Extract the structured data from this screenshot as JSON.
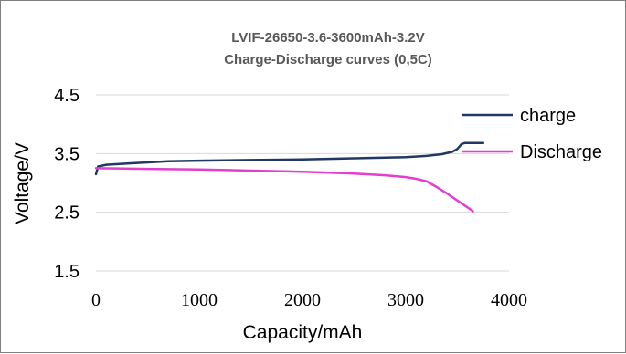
{
  "chart_data": {
    "type": "line",
    "title": "LVIF-26650-3.6-3600mAh-3.2V",
    "subtitle": "Charge-Discharge curves (0,5C)",
    "xlabel": "Capacity/mAh",
    "ylabel": "Voltage/V",
    "xlim": [
      0,
      4000
    ],
    "ylim": [
      1.5,
      4.5
    ],
    "xticks": [
      "0",
      "1000",
      "2000",
      "3000",
      "4000"
    ],
    "yticks": [
      "4.5",
      "3.5",
      "2.5",
      "1.5"
    ],
    "grid": "horizontal",
    "legend_position": "right",
    "series": [
      {
        "name": "charge",
        "color": "#1f3864",
        "x": [
          0,
          20,
          100,
          300,
          500,
          700,
          1000,
          1500,
          2000,
          2500,
          3000,
          3200,
          3350,
          3450,
          3500,
          3540,
          3570,
          3600,
          3700,
          3750
        ],
        "y": [
          3.15,
          3.28,
          3.31,
          3.33,
          3.35,
          3.37,
          3.38,
          3.39,
          3.4,
          3.42,
          3.44,
          3.46,
          3.49,
          3.53,
          3.58,
          3.66,
          3.68,
          3.68,
          3.68,
          3.68
        ]
      },
      {
        "name": "Discharge",
        "color": "#e23ed0",
        "x": [
          0,
          500,
          1000,
          1500,
          2000,
          2500,
          2800,
          3000,
          3100,
          3200,
          3300,
          3400,
          3500,
          3600,
          3650
        ],
        "y": [
          3.25,
          3.24,
          3.23,
          3.21,
          3.19,
          3.16,
          3.13,
          3.1,
          3.07,
          3.03,
          2.93,
          2.82,
          2.7,
          2.58,
          2.52
        ]
      }
    ]
  }
}
